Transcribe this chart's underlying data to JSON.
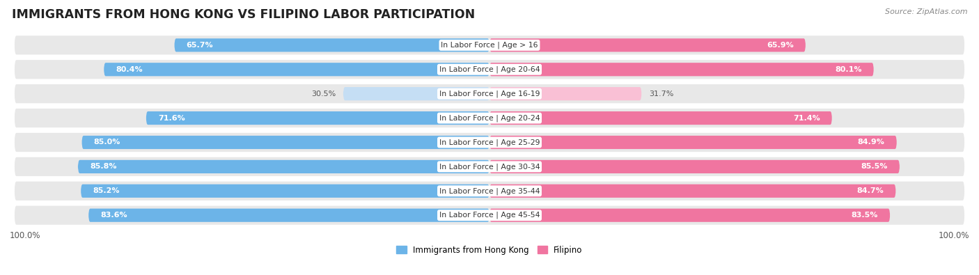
{
  "title": "IMMIGRANTS FROM HONG KONG VS FILIPINO LABOR PARTICIPATION",
  "source": "Source: ZipAtlas.com",
  "categories": [
    "In Labor Force | Age > 16",
    "In Labor Force | Age 20-64",
    "In Labor Force | Age 16-19",
    "In Labor Force | Age 20-24",
    "In Labor Force | Age 25-29",
    "In Labor Force | Age 30-34",
    "In Labor Force | Age 35-44",
    "In Labor Force | Age 45-54"
  ],
  "hk_values": [
    65.7,
    80.4,
    30.5,
    71.6,
    85.0,
    85.8,
    85.2,
    83.6
  ],
  "fil_values": [
    65.9,
    80.1,
    31.7,
    71.4,
    84.9,
    85.5,
    84.7,
    83.5
  ],
  "hk_color": "#6cb4e8",
  "hk_color_light": "#c5def4",
  "fil_color": "#f075a0",
  "fil_color_light": "#f9c0d5",
  "bg_color": "#ffffff",
  "row_bg_color": "#e8e8e8",
  "legend_hk": "Immigrants from Hong Kong",
  "legend_fil": "Filipino",
  "legend_hk_color": "#6cb4e8",
  "legend_fil_color": "#f075a0"
}
